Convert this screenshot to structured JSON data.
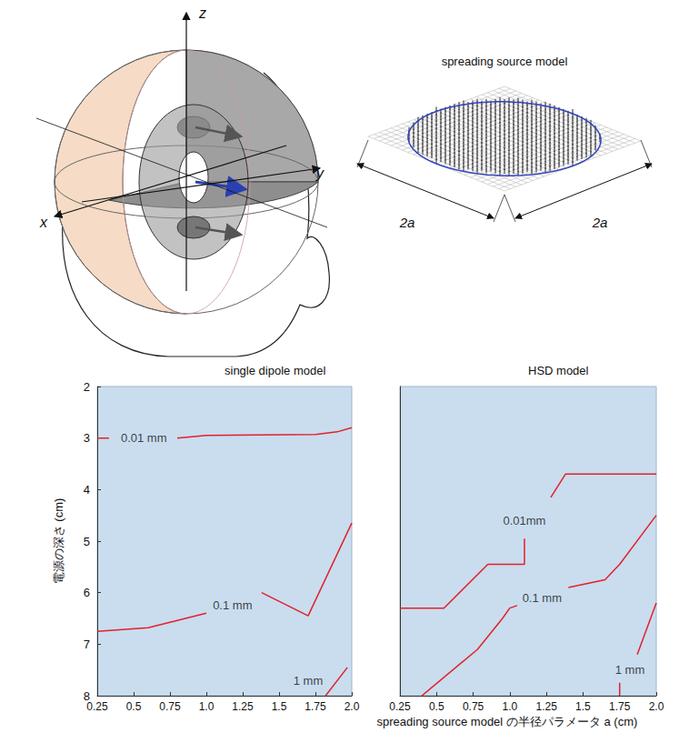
{
  "illustration": {
    "head_model": {
      "axes": {
        "x": "x",
        "y": "y",
        "z": "z"
      }
    },
    "spreading_source": {
      "title": "spreading source model",
      "side_labels": [
        "2a",
        "2a"
      ]
    }
  },
  "x_label": "spreading source model の半径パラメータ a (cm)",
  "chart_data": [
    {
      "type": "line",
      "title": "single dipole model",
      "y_label": "電源の深さ (cm)",
      "xlim": [
        0.25,
        2.0
      ],
      "xticks": [
        0.25,
        0.5,
        0.75,
        {
          "value": 1,
          "label": "1.0"
        },
        1.25,
        1.5,
        1.75,
        {
          "value": 2,
          "label": "2.0"
        }
      ],
      "ylim": [
        8,
        2
      ],
      "yticks": [
        2,
        3,
        4,
        5,
        6,
        7,
        8
      ],
      "grid": false,
      "series": [
        {
          "name": "0.01 mm",
          "color": "#e3202a",
          "x": [
            0.25,
            0.33,
            0.55,
            0.8,
            1.0,
            1.75,
            1.9,
            2.0
          ],
          "values": [
            3.0,
            3.0,
            null,
            3.0,
            2.95,
            2.93,
            2.88,
            2.8
          ],
          "label_x": 0.57,
          "label_y": 3.0
        },
        {
          "name": "0.1 mm",
          "color": "#e3202a",
          "x": [
            0.25,
            0.6,
            1.0,
            1.2,
            1.38,
            1.7,
            2.0
          ],
          "values": [
            6.75,
            6.68,
            6.4,
            null,
            6.0,
            6.45,
            4.65
          ],
          "label_x": 1.18,
          "label_y": 6.25
        },
        {
          "name": "1 mm",
          "color": "#e3202a",
          "x": [
            1.82,
            1.97
          ],
          "values": [
            8.0,
            7.45
          ],
          "label_x": 1.7,
          "label_y": 7.7
        }
      ]
    },
    {
      "type": "line",
      "title": "HSD model",
      "xlim": [
        0.25,
        2.0
      ],
      "xticks": [
        0.25,
        0.5,
        0.75,
        {
          "value": 1,
          "label": "1.0"
        },
        1.25,
        1.5,
        1.75,
        {
          "value": 2,
          "label": "2.0"
        }
      ],
      "ylim": [
        8,
        2
      ],
      "grid": false,
      "tick_labels": "x",
      "series": [
        {
          "name": "0.01mm",
          "color": "#e3202a",
          "x": [
            0.25,
            0.55,
            0.85,
            1.1,
            1.1,
            1.2,
            1.28,
            1.38,
            2.0
          ],
          "values": [
            6.3,
            6.3,
            5.45,
            5.45,
            4.95,
            null,
            4.15,
            3.7,
            3.7
          ],
          "label_x": 1.1,
          "label_y": 4.6
        },
        {
          "name": "0.1 mm",
          "color": "#e3202a",
          "x": [
            0.4,
            0.78,
            0.95,
            1.0,
            1.05,
            1.2,
            1.4,
            1.65,
            1.75,
            2.0
          ],
          "values": [
            8.0,
            7.1,
            6.5,
            6.3,
            6.25,
            null,
            5.9,
            5.75,
            5.45,
            4.5
          ],
          "label_x": 1.22,
          "label_y": 6.1
        },
        {
          "name": "1 mm",
          "color": "#e3202a",
          "x": [
            1.75,
            1.75,
            1.8,
            1.87,
            2.0
          ],
          "values": [
            8.0,
            7.75,
            null,
            7.2,
            6.2
          ],
          "label_x": 1.82,
          "label_y": 7.5
        }
      ]
    }
  ]
}
